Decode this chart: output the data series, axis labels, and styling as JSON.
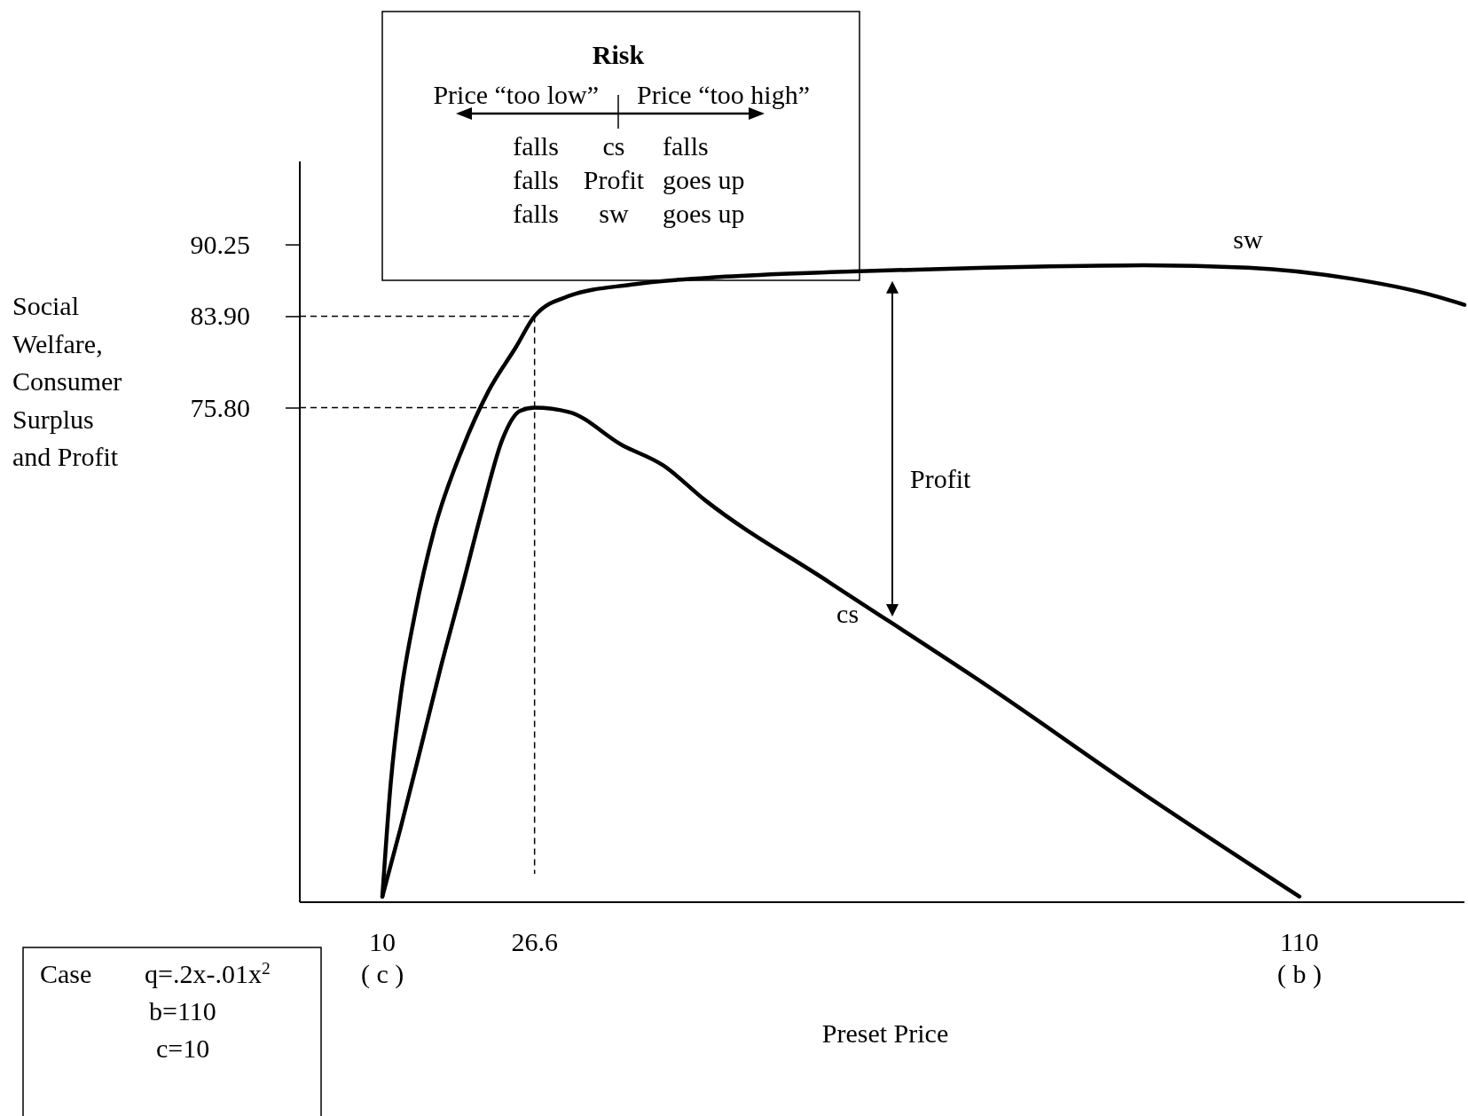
{
  "chart_data": {
    "type": "line",
    "xlabel": "Preset Price",
    "ylabel": "Social Welfare, Consumer Surplus and Profit",
    "xlim": [
      1,
      128
    ],
    "ylim": [
      32,
      97.6
    ],
    "xticks": [
      {
        "value": 10,
        "label": "10\n( c )"
      },
      {
        "value": 26.6,
        "label": "26.6"
      },
      {
        "value": 110,
        "label": "110\n( b )"
      }
    ],
    "yticks": [
      {
        "value": 75.8,
        "label": "75.80"
      },
      {
        "value": 83.9,
        "label": "83.90"
      },
      {
        "value": 90.25,
        "label": "90.25"
      }
    ],
    "series": [
      {
        "name": "sw",
        "color": "#000000",
        "x": [
          10,
          10.9,
          12.0,
          13.5,
          15.7,
          18.7,
          21.6,
          24.6,
          26.6,
          30.4,
          37.2,
          47.4,
          58.8,
          75.9,
          93.0,
          104.4,
          115.8,
          123.8,
          128
        ],
        "values": [
          32.5,
          42.4,
          50.3,
          57.3,
          65.1,
          72.1,
          77.3,
          81.2,
          83.9,
          85.7,
          86.7,
          87.4,
          87.8,
          88.2,
          88.4,
          88.2,
          87.2,
          85.9,
          84.9
        ]
      },
      {
        "name": "cs",
        "color": "#000000",
        "x": [
          10,
          12.0,
          14.2,
          16.4,
          18.7,
          20.9,
          23.1,
          25.0,
          26.6,
          30.4,
          36.1,
          40.6,
          45.2,
          58.8,
          75.9,
          93.0,
          110
        ],
        "values": [
          32.5,
          38.6,
          45.7,
          52.9,
          59.9,
          66.8,
          73.0,
          75.5,
          75.8,
          75.4,
          72.5,
          70.7,
          67.6,
          60.3,
          51.2,
          41.6,
          32.5
        ]
      }
    ],
    "ref_lines": [
      {
        "axis": "y",
        "value": 83.9,
        "line_style": "dashed"
      },
      {
        "axis": "y",
        "value": 75.8,
        "line_style": "dashed"
      },
      {
        "axis": "x",
        "value": 26.6,
        "line_style": "dashed"
      }
    ],
    "annotations": [
      "Risk",
      "Price “too low”",
      "Price “too high”",
      "falls",
      "cs",
      "falls",
      "falls",
      "Profit",
      "goes up",
      "falls",
      "sw",
      "goes up",
      "Case",
      "q=.2x-.01x$^{2}$",
      "b=110",
      "c=10",
      "Profit"
    ]
  }
}
